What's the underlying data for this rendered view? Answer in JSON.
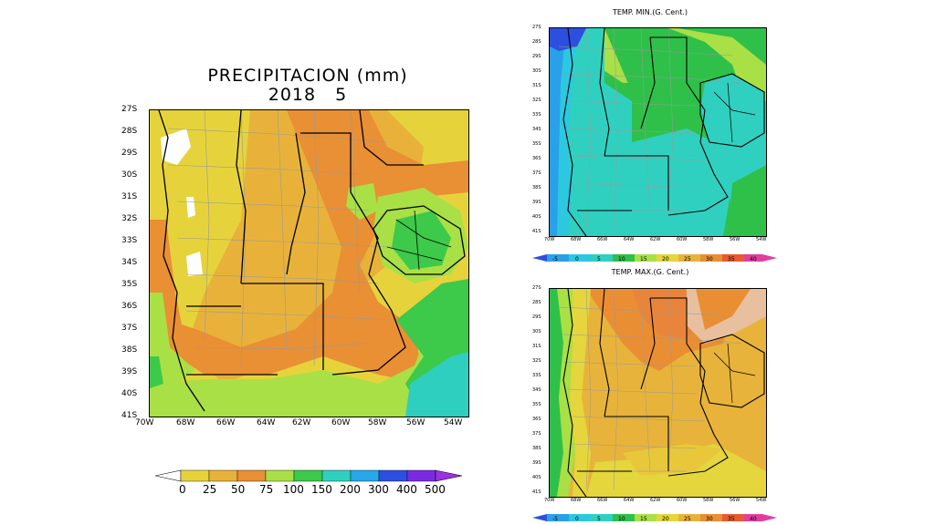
{
  "precip": {
    "title_line1": "PRECIPITACION (mm)",
    "title_line2": "2018 5",
    "lat_ticks": [
      "27S",
      "28S",
      "29S",
      "30S",
      "31S",
      "32S",
      "33S",
      "34S",
      "35S",
      "36S",
      "37S",
      "38S",
      "39S",
      "40S",
      "41S"
    ],
    "lon_ticks": [
      "70W",
      "68W",
      "66W",
      "64W",
      "62W",
      "60W",
      "58W",
      "56W",
      "54W"
    ],
    "colorbar": {
      "labels": [
        "0",
        "25",
        "50",
        "75",
        "100",
        "150",
        "200",
        "300",
        "400",
        "500"
      ],
      "colors": [
        "#e6d33c",
        "#e8b23a",
        "#e98f34",
        "#a9e045",
        "#3dc94a",
        "#2fcfbf",
        "#28a7ea",
        "#2d4fe0",
        "#7a2be0"
      ]
    }
  },
  "tmin": {
    "title": "TEMP. MIN.(G. Cent.)",
    "lat_ticks": [
      "27S",
      "28S",
      "29S",
      "30S",
      "31S",
      "32S",
      "33S",
      "34S",
      "35S",
      "36S",
      "37S",
      "38S",
      "39S",
      "40S",
      "41S"
    ],
    "lon_ticks": [
      "70W",
      "68W",
      "66W",
      "64W",
      "62W",
      "60W",
      "58W",
      "56W",
      "54W"
    ],
    "colorbar": {
      "labels": [
        "-5",
        "0",
        "5",
        "10",
        "15",
        "20",
        "25",
        "30",
        "35",
        "40"
      ],
      "colors": [
        "#2aa0e8",
        "#2cc8e0",
        "#30d0c0",
        "#2fc04a",
        "#a8e046",
        "#e4d63c",
        "#e8b33a",
        "#ea8e34",
        "#e85a30",
        "#e03fa0"
      ]
    }
  },
  "tmax": {
    "title": "TEMP. MAX.(G. Cent.)",
    "lat_ticks": [
      "27S",
      "28S",
      "29S",
      "30S",
      "31S",
      "32S",
      "33S",
      "34S",
      "35S",
      "36S",
      "37S",
      "38S",
      "39S",
      "40S",
      "41S"
    ],
    "lon_ticks": [
      "70W",
      "68W",
      "66W",
      "64W",
      "62W",
      "60W",
      "58W",
      "56W",
      "54W"
    ],
    "colorbar": {
      "labels": [
        "-5",
        "0",
        "5",
        "10",
        "15",
        "20",
        "25",
        "30",
        "35",
        "40"
      ],
      "colors": [
        "#2aa0e8",
        "#2cc8e0",
        "#30d0c0",
        "#2fc04a",
        "#a8e046",
        "#e4d63c",
        "#e8b33a",
        "#ea8e34",
        "#e85a30",
        "#e03fa0"
      ]
    }
  }
}
